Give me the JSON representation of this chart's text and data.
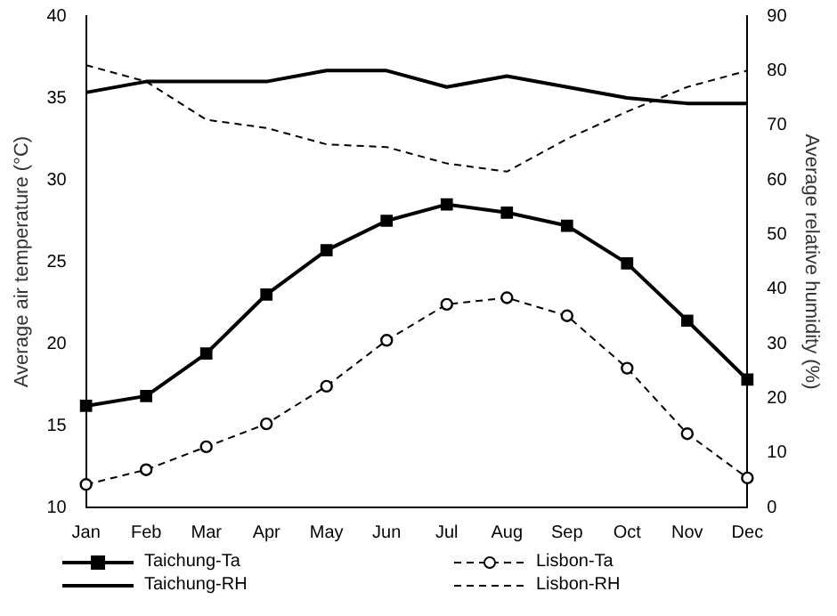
{
  "chart_data": {
    "type": "line",
    "xlabel": null,
    "ylabel": "Average air temperature (°C)",
    "y2label": "Average relative humidity (%)",
    "categories": [
      "Jan",
      "Feb",
      "Mar",
      "Apr",
      "May",
      "Jun",
      "Jul",
      "Aug",
      "Sep",
      "Oct",
      "Nov",
      "Dec"
    ],
    "series": [
      {
        "name": "Taichung-Ta",
        "color": "#000000",
        "marker": "square",
        "line_style": "solid",
        "values": [
          16.2,
          16.8,
          19.4,
          23.0,
          25.7,
          27.5,
          28.5,
          28.0,
          27.2,
          24.9,
          21.4,
          17.8
        ]
      },
      {
        "name": "Lisbon-Ta",
        "color": "#000000",
        "marker": "circle",
        "line_style": "dashed",
        "values": [
          11.4,
          12.3,
          13.7,
          15.1,
          17.4,
          20.2,
          22.4,
          22.8,
          21.7,
          18.5,
          14.5,
          11.8
        ]
      },
      {
        "name": "Taichung-RH",
        "color": "#000000",
        "marker": "none",
        "line_style": "solid",
        "axis": "y2",
        "values": [
          76,
          78,
          78,
          78,
          80,
          80,
          77,
          79,
          77,
          75,
          74,
          74
        ]
      },
      {
        "name": "Lisbon-RH",
        "color": "#000000",
        "marker": "none",
        "line_style": "dashed",
        "axis": "y2",
        "values": [
          81,
          78,
          71,
          69.5,
          66.5,
          66,
          63,
          61.5,
          67.5,
          72.5,
          77,
          80
        ]
      }
    ],
    "ylim": [
      10,
      40
    ],
    "yticks": [
      10,
      15,
      20,
      25,
      30,
      35,
      40
    ],
    "y2lim": [
      0,
      90
    ],
    "y2ticks": [
      0,
      10,
      20,
      30,
      40,
      50,
      60,
      70,
      80,
      90
    ],
    "grid": false,
    "legend": "bottom"
  }
}
